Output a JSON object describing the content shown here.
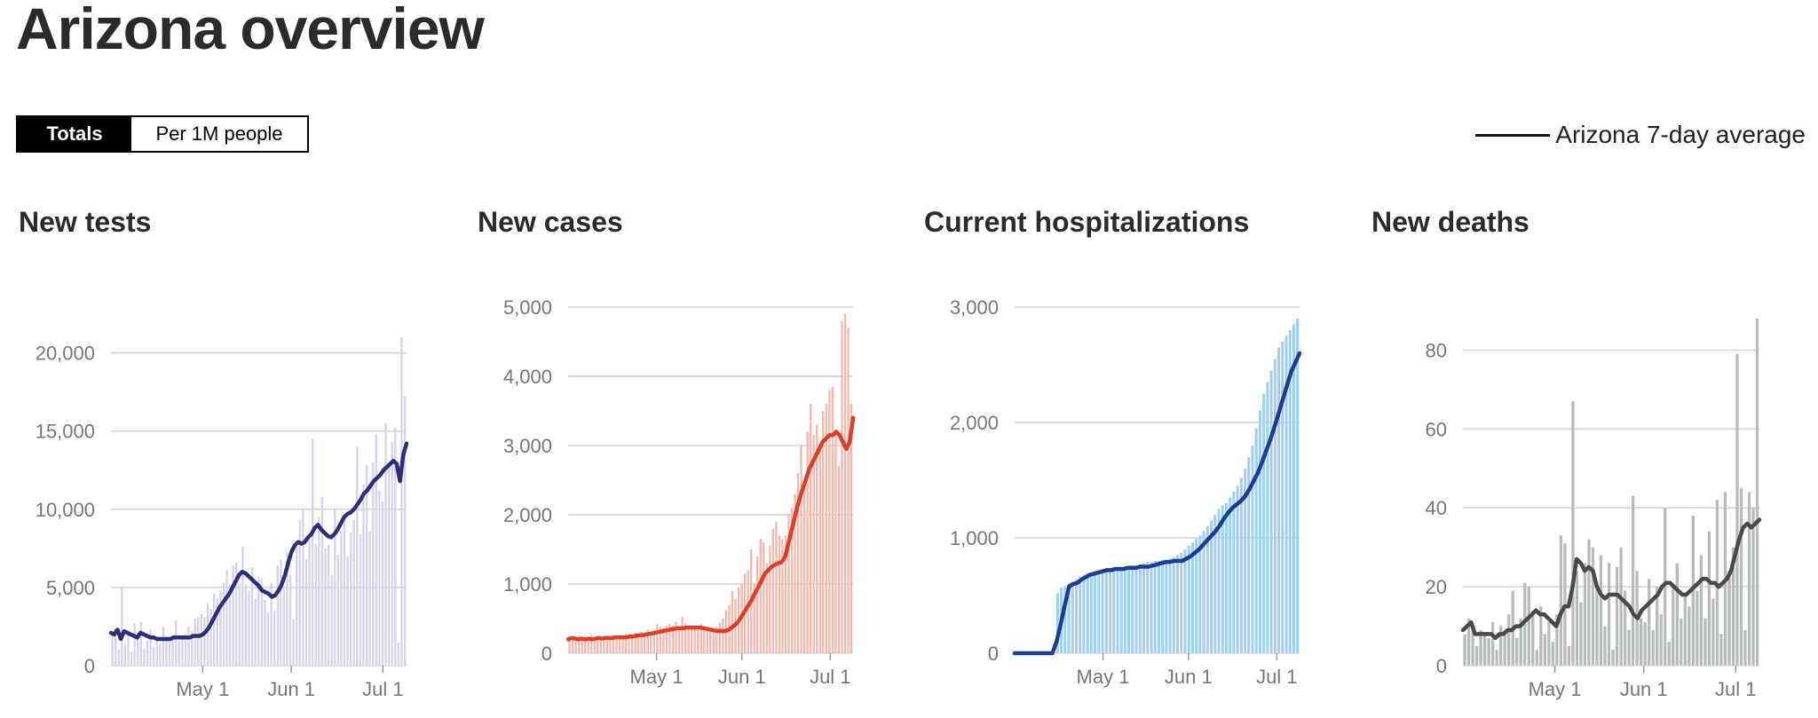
{
  "page": {
    "title": "Arizona overview",
    "toggle": {
      "totals_label": "Totals",
      "per_million_label": "Per 1M people",
      "selected": "Totals"
    },
    "legend_label": "Arizona 7-day average"
  },
  "chart_data": [
    {
      "type": "bar",
      "title": "New tests",
      "bar_color": "#d7d4ea",
      "line_color": "#2f2f78",
      "ylim": [
        0,
        21000
      ],
      "yticks": [
        0,
        5000,
        10000,
        15000,
        20000
      ],
      "ytick_labels": [
        "0",
        "5,000",
        "10,000",
        "15,000",
        "20,000"
      ],
      "xlim": [
        0,
        100
      ],
      "xticks": [
        31,
        61,
        92
      ],
      "xtick_labels": [
        "May 1",
        "Jun 1",
        "Jul 1"
      ],
      "series": [
        {
          "kind": "bars",
          "values": [
            2000,
            2400,
            1000,
            5000,
            1400,
            2200,
            900,
            2700,
            1700,
            2800,
            1100,
            1600,
            2300,
            1200,
            1800,
            1400,
            2500,
            1600,
            1700,
            1800,
            2900,
            1600,
            1800,
            2000,
            2500,
            2200,
            3000,
            3100,
            3300,
            3100,
            4000,
            3600,
            4600,
            4300,
            4800,
            5300,
            6100,
            5200,
            6400,
            6600,
            5200,
            7600,
            5200,
            4800,
            6300,
            4300,
            5700,
            5600,
            4200,
            3400,
            5300,
            3500,
            6400,
            6800,
            4900,
            7200,
            5800,
            3000,
            7600,
            9300,
            10000,
            6800,
            8100,
            14500,
            7800,
            9500,
            10800,
            7500,
            7700,
            5800,
            10000,
            7100,
            8600,
            9300,
            7000,
            8500,
            9300,
            14000,
            8400,
            11600,
            12800,
            8600,
            13000,
            14800,
            11200,
            10500,
            15500,
            13000,
            14300,
            15200,
            1500,
            21000,
            17200
          ]
        },
        {
          "kind": "line",
          "values": [
            2100,
            2000,
            2300,
            1700,
            2200,
            2100,
            2000,
            1900,
            1800,
            2100,
            2000,
            1900,
            1800,
            1800,
            1700,
            1700,
            1700,
            1700,
            1700,
            1800,
            1800,
            1800,
            1800,
            1800,
            1800,
            1900,
            1900,
            1900,
            2000,
            2200,
            2500,
            2900,
            3300,
            3700,
            4000,
            4300,
            4600,
            5000,
            5400,
            5800,
            6000,
            5900,
            5700,
            5500,
            5300,
            5100,
            4800,
            4700,
            4600,
            4400,
            4500,
            4800,
            5200,
            5800,
            6600,
            7300,
            7700,
            7900,
            7800,
            7900,
            8200,
            8400,
            8800,
            9000,
            8700,
            8500,
            8300,
            8200,
            8400,
            8700,
            9100,
            9500,
            9700,
            9800,
            10000,
            10300,
            10600,
            11000,
            11200,
            11500,
            11800,
            12000,
            12200,
            12500,
            12700,
            12900,
            13100,
            12900,
            11800,
            13500,
            14200
          ]
        }
      ]
    },
    {
      "type": "bar",
      "title": "New cases",
      "bar_color": "#f6b7ad",
      "line_color": "#d9402b",
      "ylim": [
        0,
        5000
      ],
      "yticks": [
        0,
        1000,
        2000,
        3000,
        4000,
        5000
      ],
      "ytick_labels": [
        "0",
        "1,000",
        "2,000",
        "3,000",
        "4,000",
        "5,000"
      ],
      "xlim": [
        0,
        100
      ],
      "xticks": [
        31,
        61,
        92
      ],
      "xtick_labels": [
        "May 1",
        "Jun 1",
        "Jul 1"
      ],
      "series": [
        {
          "kind": "bars",
          "values": [
            200,
            220,
            180,
            250,
            210,
            190,
            230,
            260,
            200,
            210,
            240,
            220,
            190,
            250,
            260,
            230,
            210,
            240,
            280,
            260,
            250,
            300,
            270,
            310,
            290,
            340,
            300,
            320,
            420,
            380,
            350,
            390,
            420,
            400,
            450,
            380,
            520,
            430,
            400,
            360,
            340,
            380,
            420,
            370,
            350,
            340,
            300,
            380,
            440,
            500,
            620,
            700,
            900,
            780,
            950,
            1000,
            1150,
            1200,
            1500,
            1000,
            1400,
            1650,
            1600,
            1300,
            1550,
            1800,
            1900,
            1700,
            1650,
            1700,
            2000,
            2100,
            2300,
            2600,
            3000,
            2400,
            3200,
            3600,
            3150,
            3300,
            3000,
            3500,
            3600,
            3800,
            3850,
            3200,
            2700,
            4800,
            4900,
            4700,
            3600
          ]
        },
        {
          "kind": "line",
          "values": [
            200,
            220,
            210,
            200,
            210,
            200,
            210,
            200,
            210,
            220,
            210,
            220,
            220,
            220,
            230,
            230,
            230,
            230,
            240,
            240,
            250,
            260,
            260,
            270,
            280,
            290,
            300,
            310,
            320,
            330,
            340,
            350,
            360,
            360,
            360,
            370,
            370,
            370,
            370,
            370,
            360,
            350,
            340,
            330,
            320,
            320,
            320,
            330,
            360,
            400,
            450,
            520,
            600,
            680,
            760,
            860,
            950,
            1050,
            1150,
            1200,
            1250,
            1280,
            1300,
            1320,
            1400,
            1600,
            1800,
            2000,
            2200,
            2350,
            2500,
            2650,
            2750,
            2850,
            2950,
            3050,
            3100,
            3150,
            3150,
            3200,
            3150,
            3050,
            2950,
            3050,
            3400
          ]
        }
      ]
    },
    {
      "type": "bar",
      "title": "Current hospitalizations",
      "bar_color": "#9fd0f4",
      "line_color": "#1c3d8f",
      "ylim": [
        0,
        3000
      ],
      "yticks": [
        0,
        1000,
        2000,
        3000
      ],
      "ytick_labels": [
        "0",
        "1,000",
        "2,000",
        "3,000"
      ],
      "xlim": [
        0,
        100
      ],
      "xticks": [
        31,
        61,
        92
      ],
      "xtick_labels": [
        "May 1",
        "Jun 1",
        "Jul 1"
      ],
      "bars_start": 11,
      "line_start": 0,
      "series": [
        {
          "kind": "bars",
          "values": [
            520,
            570,
            580,
            600,
            620,
            640,
            660,
            680,
            690,
            700,
            710,
            700,
            720,
            740,
            730,
            740,
            740,
            730,
            740,
            750,
            760,
            760,
            770,
            780,
            790,
            790,
            800,
            800,
            810,
            810,
            820,
            830,
            850,
            870,
            900,
            930,
            960,
            990,
            1020,
            1060,
            1100,
            1150,
            1200,
            1250,
            1280,
            1300,
            1350,
            1400,
            1450,
            1520,
            1600,
            1700,
            1800,
            1950,
            2100,
            2250,
            2350,
            2450,
            2550,
            2650,
            2700,
            2750,
            2800,
            2850,
            2900
          ]
        },
        {
          "kind": "line",
          "values": [
            0,
            0,
            0,
            0,
            0,
            0,
            0,
            0,
            0,
            0,
            100,
            250,
            420,
            580,
            600,
            610,
            640,
            660,
            680,
            690,
            700,
            710,
            720,
            720,
            730,
            730,
            730,
            740,
            740,
            740,
            750,
            750,
            750,
            760,
            770,
            780,
            790,
            790,
            800,
            800,
            800,
            820,
            840,
            870,
            900,
            940,
            980,
            1020,
            1060,
            1110,
            1170,
            1220,
            1260,
            1290,
            1320,
            1360,
            1420,
            1490,
            1560,
            1650,
            1750,
            1850,
            1960,
            2080,
            2200,
            2320,
            2440,
            2520,
            2600
          ]
        }
      ]
    },
    {
      "type": "bar",
      "title": "New deaths",
      "bar_color": "#b8bcbc",
      "line_color": "#4a4a4a",
      "ylim": [
        0,
        90
      ],
      "yticks": [
        0,
        20,
        40,
        60,
        80
      ],
      "ytick_labels": [
        "0",
        "20",
        "40",
        "60",
        "80"
      ],
      "xlim": [
        0,
        100
      ],
      "xticks": [
        31,
        61,
        92
      ],
      "xtick_labels": [
        "May 1",
        "Jun 1",
        "Jul 1"
      ],
      "series": [
        {
          "kind": "bars",
          "values": [
            8,
            12,
            10,
            5,
            9,
            8,
            7,
            11,
            4,
            10,
            9,
            13,
            19,
            7,
            12,
            21,
            20,
            14,
            4,
            15,
            8,
            11,
            6,
            13,
            33,
            31,
            5,
            67,
            24,
            16,
            26,
            32,
            30,
            20,
            28,
            10,
            26,
            4,
            25,
            30,
            19,
            9,
            43,
            24,
            12,
            11,
            22,
            9,
            20,
            13,
            40,
            6,
            20,
            26,
            12,
            18,
            15,
            38,
            19,
            28,
            12,
            34,
            17,
            42,
            8,
            44,
            24,
            30,
            79,
            45,
            9,
            44,
            40,
            88
          ]
        },
        {
          "kind": "line",
          "values": [
            9,
            10,
            11,
            8,
            8,
            8,
            8,
            8,
            7,
            8,
            8,
            9,
            9,
            10,
            10,
            11,
            12,
            13,
            14,
            13,
            13,
            12,
            11,
            10,
            13,
            15,
            15,
            20,
            27,
            26,
            24,
            25,
            24,
            20,
            18,
            17,
            18,
            18,
            18,
            17,
            16,
            15,
            13,
            12,
            14,
            15,
            16,
            17,
            18,
            20,
            21,
            21,
            20,
            19,
            18,
            18,
            19,
            20,
            21,
            22,
            22,
            21,
            21,
            20,
            21,
            22,
            24,
            28,
            32,
            35,
            36,
            35,
            36,
            37
          ]
        }
      ]
    }
  ]
}
